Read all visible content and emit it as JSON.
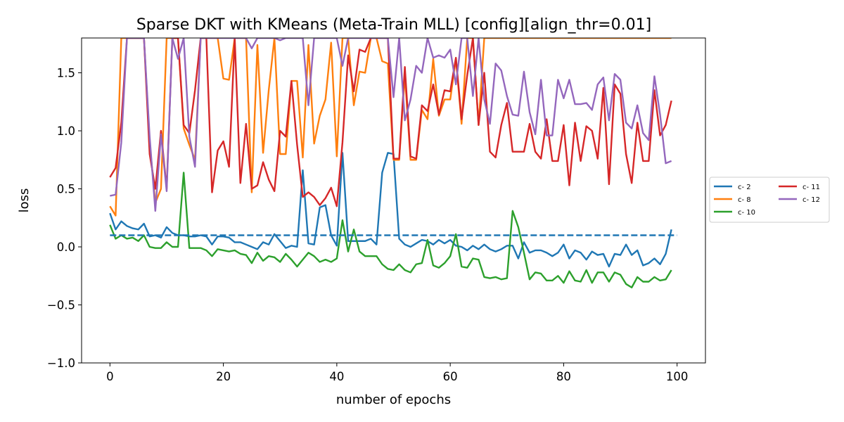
{
  "chart_data": {
    "type": "line",
    "title": "Sparse DKT with KMeans (Meta-Train MLL) [config][align_thr=0.01]",
    "xlabel": "number of epochs",
    "ylabel": "loss",
    "xlim": [
      -5,
      105
    ],
    "ylim": [
      -1.0,
      1.8
    ],
    "xticks": [
      0,
      20,
      40,
      60,
      80,
      100
    ],
    "yticks": [
      -1.0,
      -0.5,
      0.0,
      0.5,
      1.0,
      1.5
    ],
    "ytick_labels": [
      "−1.0",
      "−0.5",
      "0.0",
      "0.5",
      "1.0",
      "1.5"
    ],
    "grid": false,
    "legend_position": "right",
    "reference_line": {
      "y": 0.1,
      "color": "#1f77b4",
      "style": "dashed",
      "x_range": [
        0,
        100
      ]
    },
    "series": [
      {
        "name": "c- 2",
        "color": "#1f77b4",
        "values": [
          0.29,
          0.15,
          0.22,
          0.18,
          0.16,
          0.15,
          0.2,
          0.09,
          0.1,
          0.08,
          0.17,
          0.12,
          0.1,
          0.1,
          0.09,
          0.09,
          0.1,
          0.09,
          0.02,
          0.09,
          0.09,
          0.08,
          0.04,
          0.04,
          0.02,
          0.0,
          -0.02,
          0.04,
          0.02,
          0.11,
          0.05,
          -0.01,
          0.01,
          0.0,
          0.66,
          0.03,
          0.02,
          0.34,
          0.36,
          0.1,
          0.01,
          0.81,
          0.05,
          0.05,
          0.05,
          0.05,
          0.07,
          0.02,
          0.64,
          0.81,
          0.8,
          0.07,
          0.02,
          0.0,
          0.03,
          0.06,
          0.05,
          0.02,
          0.06,
          0.03,
          0.06,
          0.01,
          0.0,
          -0.03,
          0.01,
          -0.02,
          0.02,
          -0.02,
          -0.04,
          -0.02,
          0.01,
          0.01,
          -0.1,
          0.04,
          -0.05,
          -0.03,
          -0.03,
          -0.05,
          -0.08,
          -0.05,
          0.02,
          -0.1,
          -0.03,
          -0.05,
          -0.11,
          -0.04,
          -0.07,
          -0.06,
          -0.17,
          -0.06,
          -0.07,
          0.02,
          -0.07,
          -0.03,
          -0.16,
          -0.14,
          -0.1,
          -0.15,
          -0.06,
          0.15
        ]
      },
      {
        "name": "c- 8",
        "color": "#ff7f0e",
        "values": [
          0.35,
          0.27,
          1.8,
          1.8,
          1.8,
          1.8,
          1.8,
          0.9,
          0.38,
          0.5,
          1.8,
          1.8,
          1.8,
          1.02,
          0.88,
          0.75,
          1.8,
          1.8,
          1.8,
          1.8,
          1.45,
          1.44,
          1.8,
          1.8,
          1.8,
          0.47,
          1.74,
          0.81,
          1.35,
          1.8,
          0.8,
          0.8,
          1.43,
          1.43,
          0.77,
          1.74,
          0.89,
          1.13,
          1.27,
          1.76,
          0.78,
          1.8,
          1.8,
          1.22,
          1.51,
          1.5,
          1.8,
          1.8,
          1.6,
          1.58,
          0.75,
          0.75,
          1.48,
          0.75,
          0.75,
          1.18,
          1.1,
          1.62,
          1.13,
          1.27,
          1.27,
          1.62,
          1.06,
          1.8,
          1.8,
          1.05,
          1.8,
          1.8,
          1.8,
          1.8,
          1.8,
          1.8,
          1.8,
          1.8,
          1.8,
          1.8,
          1.8,
          1.8,
          1.8,
          1.8,
          1.8,
          1.8,
          1.8,
          1.8,
          1.8,
          1.8,
          1.8,
          1.8,
          1.8,
          1.8,
          1.8,
          1.8,
          1.8,
          1.8,
          1.8,
          1.8,
          1.8,
          1.8,
          1.8,
          1.8
        ]
      },
      {
        "name": "c- 10",
        "color": "#2ca02c",
        "values": [
          0.19,
          0.07,
          0.1,
          0.07,
          0.08,
          0.05,
          0.1,
          0.0,
          -0.01,
          -0.01,
          0.04,
          0.0,
          0.0,
          0.64,
          -0.01,
          -0.01,
          -0.01,
          -0.03,
          -0.08,
          -0.02,
          -0.03,
          -0.04,
          -0.03,
          -0.06,
          -0.07,
          -0.14,
          -0.05,
          -0.12,
          -0.08,
          -0.09,
          -0.13,
          -0.06,
          -0.11,
          -0.17,
          -0.11,
          -0.05,
          -0.08,
          -0.13,
          -0.11,
          -0.13,
          -0.1,
          0.23,
          -0.04,
          0.15,
          -0.04,
          -0.08,
          -0.08,
          -0.08,
          -0.15,
          -0.19,
          -0.2,
          -0.15,
          -0.2,
          -0.22,
          -0.15,
          -0.14,
          0.06,
          -0.16,
          -0.18,
          -0.14,
          -0.08,
          0.11,
          -0.17,
          -0.18,
          -0.1,
          -0.11,
          -0.26,
          -0.27,
          -0.26,
          -0.28,
          -0.27,
          0.31,
          0.17,
          -0.05,
          -0.28,
          -0.22,
          -0.23,
          -0.29,
          -0.29,
          -0.25,
          -0.31,
          -0.21,
          -0.29,
          -0.3,
          -0.2,
          -0.31,
          -0.22,
          -0.22,
          -0.3,
          -0.22,
          -0.24,
          -0.32,
          -0.35,
          -0.26,
          -0.3,
          -0.3,
          -0.26,
          -0.29,
          -0.28,
          -0.2
        ]
      },
      {
        "name": "c- 11",
        "color": "#d62728",
        "values": [
          0.6,
          0.68,
          1.07,
          1.8,
          1.8,
          1.8,
          1.8,
          0.8,
          0.5,
          1.0,
          0.5,
          1.8,
          1.8,
          1.05,
          0.98,
          1.35,
          1.8,
          1.8,
          0.47,
          0.83,
          0.91,
          0.69,
          1.8,
          0.55,
          1.06,
          0.5,
          0.53,
          0.73,
          0.58,
          0.48,
          1.0,
          0.95,
          1.43,
          0.88,
          0.43,
          0.47,
          0.43,
          0.36,
          0.42,
          0.51,
          0.35,
          0.9,
          1.65,
          1.34,
          1.7,
          1.68,
          1.8,
          1.8,
          1.8,
          1.8,
          0.76,
          0.76,
          1.55,
          0.78,
          0.76,
          1.22,
          1.17,
          1.4,
          1.14,
          1.35,
          1.34,
          1.63,
          1.1,
          1.48,
          1.8,
          1.05,
          1.5,
          0.82,
          0.77,
          1.05,
          1.24,
          0.82,
          0.82,
          0.82,
          1.06,
          0.82,
          0.76,
          1.1,
          0.74,
          0.74,
          1.05,
          0.53,
          1.07,
          0.74,
          1.04,
          1.0,
          0.76,
          1.37,
          0.54,
          1.4,
          1.32,
          0.8,
          0.55,
          1.07,
          0.74,
          0.74,
          1.35,
          0.96,
          1.05,
          1.26
        ]
      },
      {
        "name": "c- 12",
        "color": "#9467bd",
        "values": [
          0.44,
          0.45,
          0.9,
          1.8,
          1.8,
          1.8,
          1.8,
          0.95,
          0.31,
          0.97,
          0.48,
          1.8,
          1.62,
          1.8,
          0.95,
          0.69,
          1.8,
          1.8,
          1.8,
          1.8,
          1.8,
          1.8,
          1.8,
          1.8,
          1.8,
          1.71,
          1.8,
          1.8,
          1.8,
          1.8,
          1.78,
          1.8,
          1.8,
          1.8,
          1.8,
          1.22,
          1.8,
          1.8,
          1.8,
          1.8,
          1.8,
          1.56,
          1.8,
          1.8,
          1.8,
          1.8,
          1.8,
          1.8,
          1.8,
          1.8,
          1.29,
          1.8,
          1.09,
          1.27,
          1.56,
          1.5,
          1.8,
          1.63,
          1.65,
          1.63,
          1.7,
          1.4,
          1.8,
          1.8,
          1.3,
          1.8,
          1.27,
          1.06,
          1.58,
          1.52,
          1.3,
          1.14,
          1.13,
          1.51,
          1.16,
          0.97,
          1.44,
          0.96,
          0.96,
          1.44,
          1.28,
          1.44,
          1.23,
          1.23,
          1.24,
          1.18,
          1.4,
          1.46,
          1.09,
          1.49,
          1.44,
          1.07,
          1.02,
          1.22,
          0.98,
          0.92,
          1.47,
          1.14,
          0.72,
          0.74
        ]
      }
    ]
  }
}
